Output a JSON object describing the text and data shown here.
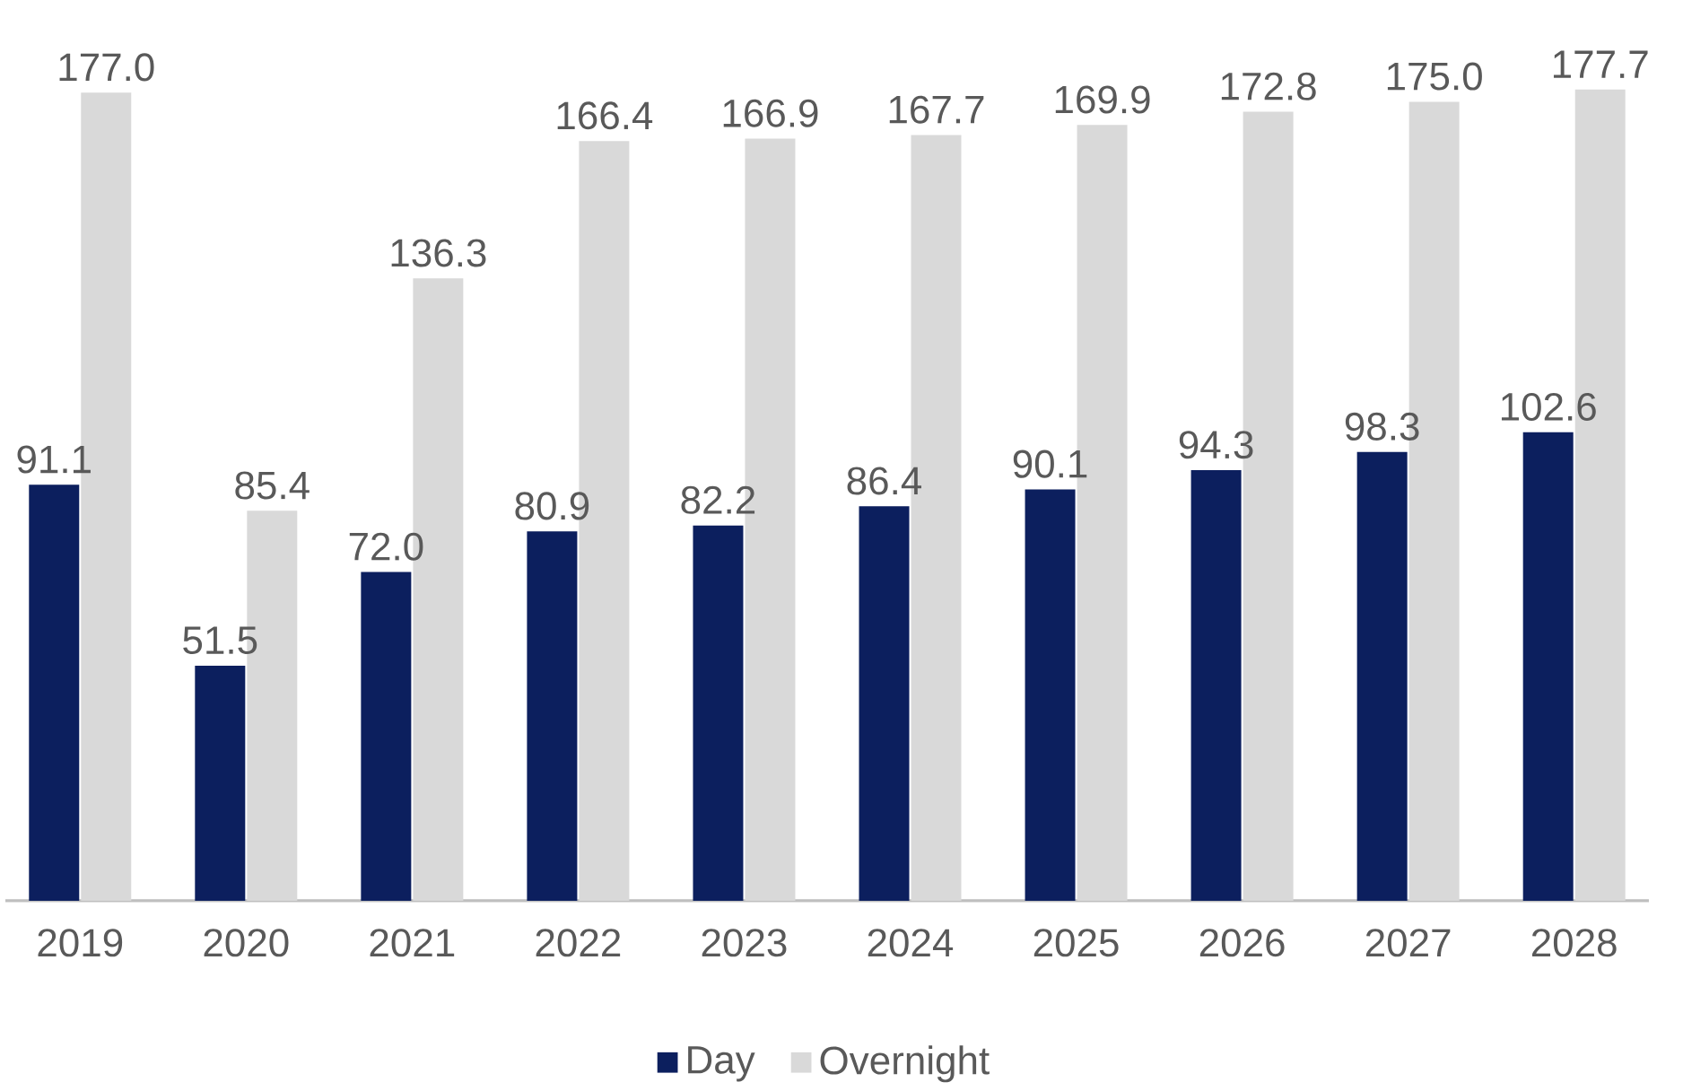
{
  "chart_data": {
    "type": "bar",
    "categories": [
      "2019",
      "2020",
      "2021",
      "2022",
      "2023",
      "2024",
      "2025",
      "2026",
      "2027",
      "2028"
    ],
    "series": [
      {
        "name": "Day",
        "color": "#0c1f5e",
        "values": [
          91.1,
          51.5,
          72.0,
          80.9,
          82.2,
          86.4,
          90.1,
          94.3,
          98.3,
          102.6
        ],
        "value_labels": [
          "91.1",
          "51.5",
          "72.0",
          "80.9",
          "82.2",
          "86.4",
          "90.1",
          "94.3",
          "98.3",
          "102.6"
        ]
      },
      {
        "name": "Overnight",
        "color": "#d9d9d9",
        "values": [
          177.0,
          85.4,
          136.3,
          166.4,
          166.9,
          167.7,
          169.9,
          172.8,
          175.0,
          177.7
        ],
        "value_labels": [
          "177.0",
          "85.4",
          "136.3",
          "166.4",
          "166.9",
          "167.7",
          "169.9",
          "172.8",
          "175.0",
          "177.7"
        ]
      }
    ],
    "legend": "bottom"
  }
}
